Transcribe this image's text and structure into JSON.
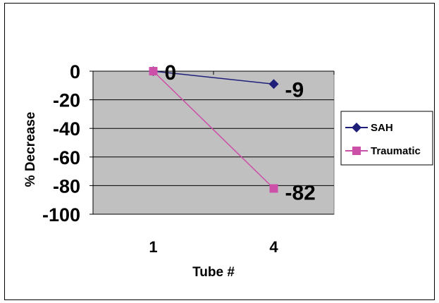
{
  "chart_data": {
    "type": "line",
    "title": "",
    "xlabel": "Tube #",
    "ylabel": "% Decrease",
    "categories": [
      "1",
      "4"
    ],
    "ylim": [
      -100,
      0
    ],
    "yticks": [
      0,
      -20,
      -40,
      -60,
      -80,
      -100
    ],
    "grid": true,
    "legend_position": "right",
    "series": [
      {
        "name": "SAH",
        "values": [
          0,
          -9
        ],
        "color": "#1f1f7a",
        "marker": "diamond",
        "data_labels": [
          "0",
          "-9"
        ]
      },
      {
        "name": "Traumatic",
        "values": [
          0,
          -82
        ],
        "color": "#cc4fa8",
        "marker": "square",
        "data_labels": [
          "",
          "-82"
        ]
      }
    ],
    "plot_background": "#c0c0c0"
  }
}
